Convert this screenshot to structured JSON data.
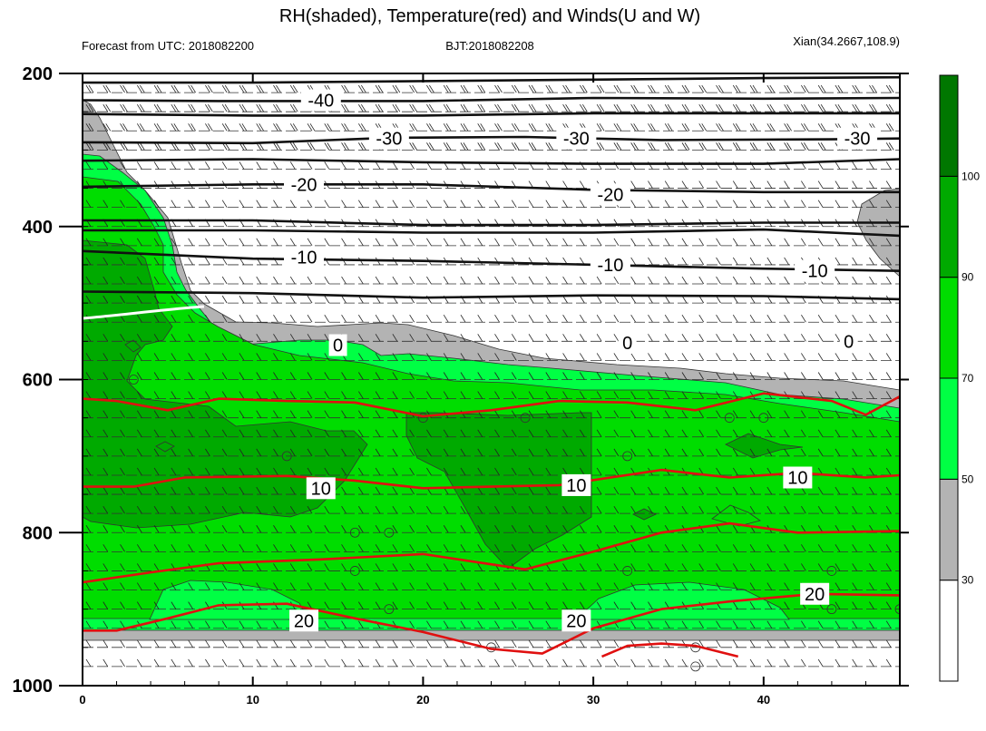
{
  "chart_data": {
    "type": "contour",
    "title": "RH(shaded), Temperature(red) and Winds(U and W)",
    "subtitle_left": "Forecast from UTC: 2018082200",
    "subtitle_center": "BJT:2018082208",
    "subtitle_right": "Xian(34.2667,108.9)",
    "xlabel": "",
    "ylabel": "",
    "xlim": [
      0,
      48
    ],
    "ylim": [
      1000,
      200
    ],
    "x_ticks": [
      "0",
      "10",
      "20",
      "30",
      "40"
    ],
    "y_ticks": [
      "200",
      "400",
      "600",
      "800",
      "1000"
    ],
    "colorbar": {
      "levels": [
        "30",
        "50",
        "70",
        "90",
        "100"
      ],
      "colors": [
        "#ffffff",
        "#b3b3b3",
        "#00ff44",
        "#00dd00",
        "#00aa00",
        "#007700"
      ]
    },
    "temperature_labels": [
      {
        "text": "-40",
        "x": 14,
        "p": 235
      },
      {
        "text": "-30",
        "x": 18,
        "p": 285
      },
      {
        "text": "-30",
        "x": 29,
        "p": 285
      },
      {
        "text": "-30",
        "x": 45.5,
        "p": 285
      },
      {
        "text": "-20",
        "x": 13,
        "p": 345
      },
      {
        "text": "-20",
        "x": 31,
        "p": 358
      },
      {
        "text": "-10",
        "x": 13,
        "p": 440
      },
      {
        "text": "-10",
        "x": 31,
        "p": 450
      },
      {
        "text": "-10",
        "x": 43,
        "p": 458
      },
      {
        "text": "0",
        "x": 15,
        "p": 555
      },
      {
        "text": "0",
        "x": 32,
        "p": 552
      },
      {
        "text": "0",
        "x": 45,
        "p": 550
      },
      {
        "text": "10",
        "x": 14,
        "p": 742
      },
      {
        "text": "10",
        "x": 29,
        "p": 738
      },
      {
        "text": "10",
        "x": 42,
        "p": 728
      },
      {
        "text": "20",
        "x": 13,
        "p": 915
      },
      {
        "text": "20",
        "x": 29,
        "p": 915
      },
      {
        "text": "20",
        "x": 43,
        "p": 880
      }
    ],
    "temperature_red_isotherms": [
      {
        "level": "10",
        "points": [
          [
            0,
            625
          ],
          [
            2,
            628
          ],
          [
            5,
            640
          ],
          [
            8,
            625
          ],
          [
            12,
            628
          ],
          [
            16,
            630
          ],
          [
            20,
            648
          ],
          [
            24,
            640
          ],
          [
            28,
            628
          ],
          [
            32,
            630
          ],
          [
            36,
            640
          ],
          [
            40,
            618
          ],
          [
            44,
            628
          ],
          [
            46,
            646
          ],
          [
            48,
            622
          ]
        ]
      },
      {
        "level": "10",
        "points": [
          [
            0,
            740
          ],
          [
            3,
            740
          ],
          [
            6,
            728
          ],
          [
            12,
            726
          ],
          [
            16,
            732
          ],
          [
            20,
            742
          ],
          [
            24,
            740
          ],
          [
            28,
            738
          ],
          [
            34,
            718
          ],
          [
            38,
            728
          ],
          [
            42,
            722
          ],
          [
            46,
            728
          ],
          [
            48,
            725
          ]
        ]
      },
      {
        "level": "20",
        "points": [
          [
            0,
            865
          ],
          [
            4,
            852
          ],
          [
            8,
            840
          ],
          [
            14,
            835
          ],
          [
            20,
            828
          ],
          [
            26,
            848
          ],
          [
            30,
            825
          ],
          [
            34,
            800
          ],
          [
            38,
            788
          ],
          [
            42,
            800
          ],
          [
            48,
            798
          ]
        ]
      },
      {
        "level": "20",
        "points": [
          [
            0,
            928
          ],
          [
            2,
            928
          ],
          [
            5,
            912
          ],
          [
            8,
            895
          ],
          [
            12,
            893
          ],
          [
            16,
            912
          ],
          [
            20,
            930
          ],
          [
            24,
            952
          ],
          [
            27,
            958
          ],
          [
            30,
            925
          ],
          [
            34,
            900
          ],
          [
            38,
            890
          ],
          [
            43,
            880
          ],
          [
            48,
            882
          ]
        ]
      },
      {
        "level": "30",
        "points": [
          [
            30.5,
            962
          ],
          [
            32,
            948
          ],
          [
            34,
            945
          ],
          [
            36,
            948
          ],
          [
            38.5,
            962
          ]
        ]
      }
    ],
    "temperature_black_isotherms": [
      {
        "level": "-50",
        "points": [
          [
            0,
            212
          ],
          [
            10,
            212
          ],
          [
            20,
            210
          ],
          [
            30,
            208
          ],
          [
            40,
            206
          ],
          [
            48,
            205
          ]
        ]
      },
      {
        "level": "-40",
        "points": [
          [
            0,
            235
          ],
          [
            8,
            236
          ],
          [
            20,
            236
          ],
          [
            30,
            232
          ],
          [
            40,
            233
          ],
          [
            48,
            232
          ]
        ]
      },
      {
        "level": "-40",
        "points": [
          [
            0,
            253
          ],
          [
            10,
            255
          ],
          [
            20,
            255
          ],
          [
            30,
            252
          ],
          [
            40,
            252
          ],
          [
            48,
            252
          ]
        ]
      },
      {
        "level": "-30",
        "points": [
          [
            0,
            290
          ],
          [
            10,
            291
          ],
          [
            18,
            284
          ],
          [
            26,
            283
          ],
          [
            34,
            287
          ],
          [
            44,
            286
          ],
          [
            48,
            285
          ]
        ]
      },
      {
        "level": "-30",
        "points": [
          [
            0,
            314
          ],
          [
            10,
            312
          ],
          [
            20,
            316
          ],
          [
            30,
            318
          ],
          [
            40,
            318
          ],
          [
            48,
            312
          ]
        ]
      },
      {
        "level": "-20",
        "points": [
          [
            0,
            348
          ],
          [
            10,
            345
          ],
          [
            20,
            345
          ],
          [
            30,
            352
          ],
          [
            40,
            355
          ],
          [
            48,
            355
          ]
        ]
      },
      {
        "level": "-20",
        "points": [
          [
            0,
            392
          ],
          [
            10,
            392
          ],
          [
            20,
            398
          ],
          [
            30,
            398
          ],
          [
            40,
            395
          ],
          [
            48,
            395
          ]
        ]
      },
      {
        "level": "-10",
        "points": [
          [
            0,
            432
          ],
          [
            10,
            442
          ],
          [
            20,
            445
          ],
          [
            30,
            450
          ],
          [
            40,
            455
          ],
          [
            48,
            458
          ]
        ]
      },
      {
        "level": "0",
        "points": [
          [
            0,
            485
          ],
          [
            10,
            487
          ],
          [
            20,
            493
          ],
          [
            30,
            490
          ],
          [
            40,
            491
          ],
          [
            48,
            495
          ]
        ]
      },
      {
        "level": "-10",
        "points": [
          [
            0,
            405
          ],
          [
            10,
            405
          ],
          [
            20,
            408
          ],
          [
            30,
            408
          ],
          [
            40,
            404
          ],
          [
            48,
            412
          ]
        ]
      }
    ]
  }
}
